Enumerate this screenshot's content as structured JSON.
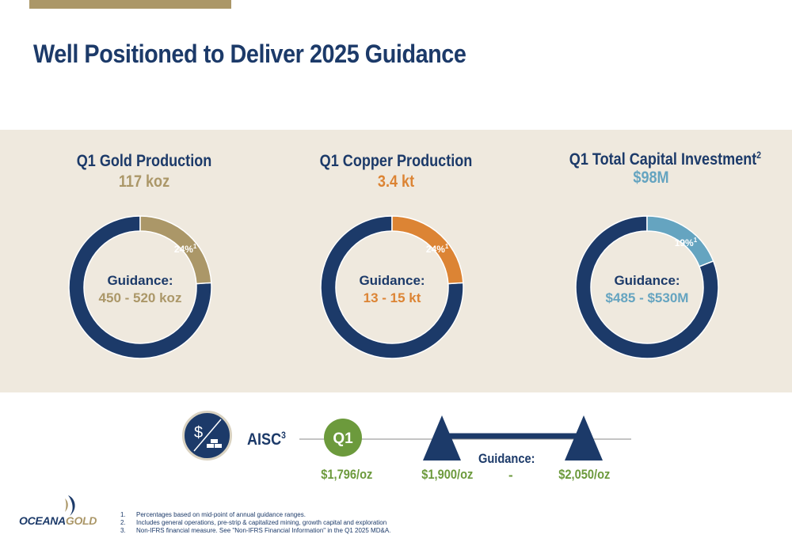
{
  "title": "Well Positioned to Deliver 2025 Guidance",
  "colors": {
    "navy": "#1c3a69",
    "gold": "#ab9768",
    "orange": "#dc8434",
    "blue": "#65a4c0",
    "green": "#6c9a3c",
    "band": "#efe9de"
  },
  "donuts": [
    {
      "title": "Q1 Gold Production",
      "title_sup": "",
      "value": "117 koz",
      "percent": 24,
      "pct_label": "24%",
      "pct_sup": "1",
      "guidance_label": "Guidance:",
      "guidance_value": "450 - 520 koz",
      "color": "#ab9768"
    },
    {
      "title": "Q1 Copper Production",
      "title_sup": "",
      "value": "3.4 kt",
      "percent": 24,
      "pct_label": "24%",
      "pct_sup": "1",
      "guidance_label": "Guidance:",
      "guidance_value": "13 - 15 kt",
      "color": "#dc8434"
    },
    {
      "title": "Q1 Total Capital Investment",
      "title_sup": "2",
      "value": "$98M",
      "percent": 19,
      "pct_label": "19%",
      "pct_sup": "1",
      "guidance_label": "Guidance:",
      "guidance_value": "$485 - $530M",
      "color": "#65a4c0"
    }
  ],
  "aisc": {
    "label": "AISC",
    "label_sup": "3",
    "icon": "dollar-gold-bars-icon",
    "q1_label": "Q1",
    "q1_value": "$1,796/oz",
    "guidance_label": "Guidance:",
    "guidance_low": "$1,900/oz",
    "guidance_sep": "-",
    "guidance_high": "$2,050/oz"
  },
  "logo": {
    "part1": "OCEANA",
    "part2": "GOLD"
  },
  "footnotes": [
    {
      "num": "1.",
      "text": "Percentages based on mid-point of annual guidance ranges."
    },
    {
      "num": "2.",
      "text": "Includes general operations, pre-strip & capitalized mining, growth capital and exploration"
    },
    {
      "num": "3.",
      "text": "Non-IFRS financial measure. See \"Non-IFRS Financial Information\" in the Q1 2025 MD&A."
    }
  ]
}
